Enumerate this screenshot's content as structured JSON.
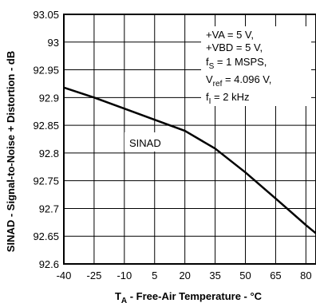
{
  "chart_data": {
    "type": "line",
    "xlabel": {
      "main": "T",
      "sub": "A",
      "rest": " - Free-Air Temperature - °C"
    },
    "ylabel": "SINAD - Signal-to-Noise + Distortion - dB",
    "xlim": [
      -40,
      85
    ],
    "ylim": [
      92.6,
      93.05
    ],
    "x_ticks": [
      -40,
      -25,
      -10,
      5,
      20,
      35,
      50,
      65,
      80
    ],
    "x_tick_labels": [
      "-40",
      "-25",
      "-10",
      "5",
      "20",
      "35",
      "50",
      "65",
      "80"
    ],
    "y_ticks": [
      92.6,
      92.65,
      92.7,
      92.75,
      92.8,
      92.85,
      92.9,
      92.95,
      93,
      93.05
    ],
    "y_tick_labels": [
      "92.6",
      "92.65",
      "92.7",
      "92.75",
      "92.8",
      "92.85",
      "92.9",
      "92.95",
      "93",
      "93.05"
    ],
    "grid": true,
    "series": [
      {
        "name": "SINAD",
        "x": [
          -40,
          -25,
          -10,
          5,
          20,
          35,
          50,
          65,
          80,
          85
        ],
        "values": [
          92.918,
          92.9,
          92.88,
          92.86,
          92.84,
          92.808,
          92.765,
          92.718,
          92.67,
          92.655
        ]
      }
    ],
    "series_label": "SINAD",
    "conditions": [
      {
        "main": "+VA = 5 V,"
      },
      {
        "main": "+VBD = 5 V,"
      },
      {
        "main": "f",
        "sub": "S",
        "rest": " = 1 MSPS,"
      },
      {
        "main": "V",
        "sub": "ref",
        "rest": " = 4.096 V,"
      },
      {
        "main": "f",
        "sub": "I",
        "rest": " = 2 kHz"
      }
    ]
  }
}
